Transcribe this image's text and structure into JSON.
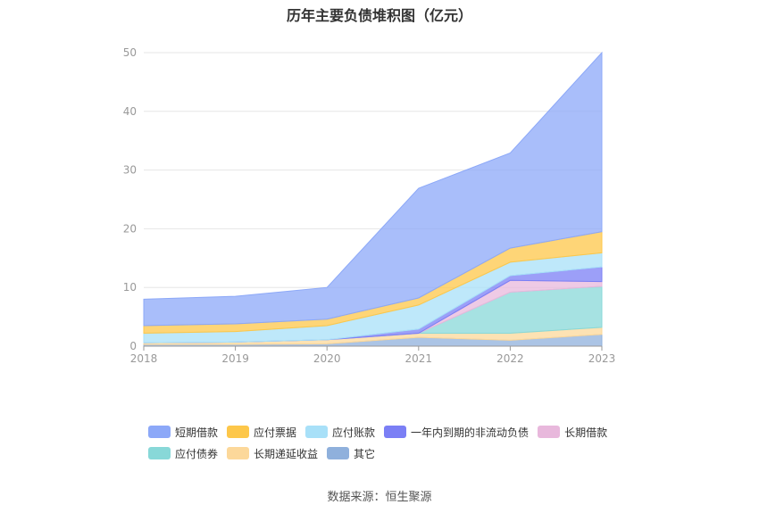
{
  "title": "历年主要负债堆积图（亿元）",
  "source": "数据来源：恒生聚源",
  "chart_data": {
    "type": "area",
    "stacked": true,
    "x": [
      "2018",
      "2019",
      "2020",
      "2021",
      "2022",
      "2023"
    ],
    "ylim": [
      0,
      50
    ],
    "yticks": [
      "0",
      "10",
      "20",
      "30",
      "40",
      "50"
    ],
    "grid": true,
    "legend_position": "bottom",
    "series": [
      {
        "name": "其它",
        "color": "#8fb0dc",
        "values": [
          0.3,
          0.3,
          0.4,
          1.5,
          1.0,
          2.0
        ]
      },
      {
        "name": "长期递延收益",
        "color": "#fcd89a",
        "values": [
          0.3,
          0.4,
          0.7,
          0.7,
          1.2,
          1.2
        ]
      },
      {
        "name": "应付债券",
        "color": "#88d8d8",
        "values": [
          0,
          0,
          0,
          0,
          7.0,
          7.0
        ]
      },
      {
        "name": "长期借款",
        "color": "#e8b8dc",
        "values": [
          0,
          0,
          0,
          0,
          2.0,
          0.8
        ]
      },
      {
        "name": "一年内到期的非流动负债",
        "color": "#7b7ff5",
        "values": [
          0,
          0,
          0,
          0.7,
          0.8,
          2.5
        ]
      },
      {
        "name": "应付账款",
        "color": "#a8e0f8",
        "values": [
          1.6,
          1.8,
          2.4,
          4.1,
          2.3,
          2.4
        ]
      },
      {
        "name": "应付票据",
        "color": "#fdc74a",
        "values": [
          1.3,
          1.3,
          1.1,
          1.2,
          2.4,
          3.6
        ]
      },
      {
        "name": "短期借款",
        "color": "#8ca8f8",
        "values": [
          4.5,
          4.7,
          5.4,
          18.7,
          16.2,
          30.5
        ]
      }
    ]
  }
}
